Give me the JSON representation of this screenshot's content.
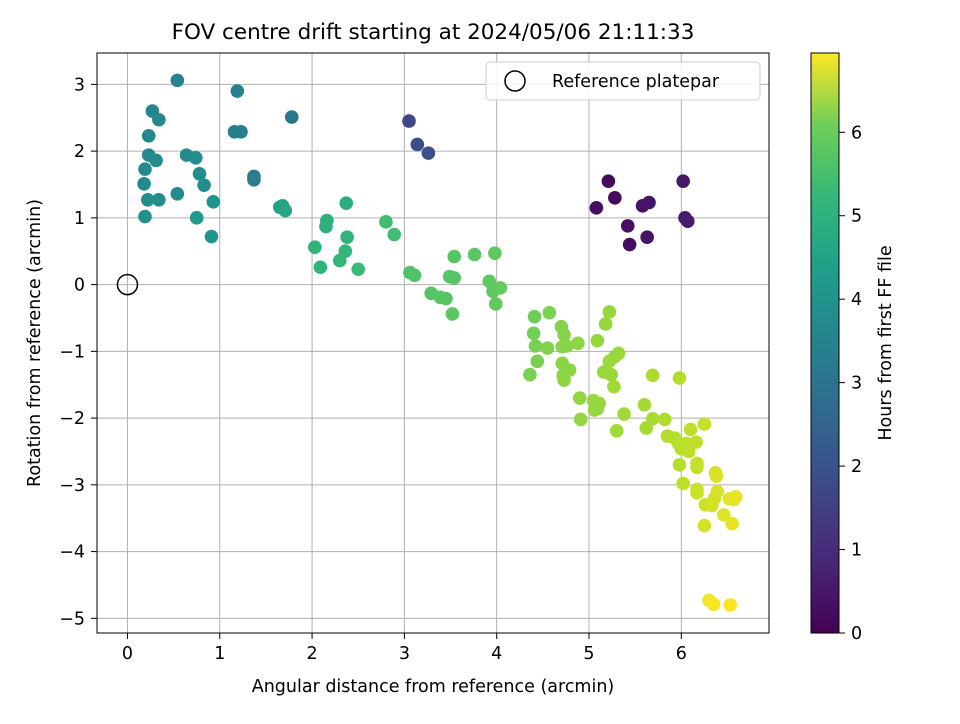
{
  "chart_data": {
    "type": "scatter",
    "title": "FOV centre drift starting at 2024/05/06 21:11:33",
    "xlabel": "Angular distance from reference (arcmin)",
    "ylabel": "Rotation from reference (arcmin)",
    "xlim": [
      -0.33,
      6.95
    ],
    "ylim": [
      -5.22,
      3.47
    ],
    "xticks": [
      0,
      1,
      2,
      3,
      4,
      5,
      6
    ],
    "xtick_labels": [
      "0",
      "1",
      "2",
      "3",
      "4",
      "5",
      "6"
    ],
    "yticks": [
      3,
      2,
      1,
      0,
      -1,
      -2,
      -3,
      -4,
      -5
    ],
    "ytick_labels": [
      "3",
      "2",
      "1",
      "0",
      "−1",
      "−2",
      "−3",
      "−4",
      "−5"
    ],
    "grid": true,
    "legend": {
      "location": "upper-right",
      "entries": [
        "Reference platepar"
      ]
    },
    "reference_point": {
      "x": 0,
      "y": 0,
      "label": "Reference platepar"
    },
    "colorbar": {
      "label": "Hours from first FF file",
      "range": [
        0,
        6.95
      ],
      "ticks": [
        0,
        1,
        2,
        3,
        4,
        5,
        6
      ],
      "tick_labels": [
        "0",
        "1",
        "2",
        "3",
        "4",
        "5",
        "6"
      ],
      "colormap": "viridis"
    },
    "points": [
      {
        "x": 5.21,
        "y": 1.55,
        "h": 0.15
      },
      {
        "x": 5.28,
        "y": 1.3,
        "h": 0.2
      },
      {
        "x": 5.08,
        "y": 1.15,
        "h": 0.25
      },
      {
        "x": 5.42,
        "y": 0.88,
        "h": 0.3
      },
      {
        "x": 5.44,
        "y": 0.6,
        "h": 0.3
      },
      {
        "x": 5.58,
        "y": 1.18,
        "h": 0.35
      },
      {
        "x": 5.65,
        "y": 1.23,
        "h": 0.4
      },
      {
        "x": 5.63,
        "y": 0.71,
        "h": 0.4
      },
      {
        "x": 6.02,
        "y": 1.55,
        "h": 0.45
      },
      {
        "x": 6.04,
        "y": 1.0,
        "h": 0.5
      },
      {
        "x": 6.07,
        "y": 0.95,
        "h": 0.55
      },
      {
        "x": 3.05,
        "y": 2.45,
        "h": 1.5
      },
      {
        "x": 3.14,
        "y": 2.1,
        "h": 1.6
      },
      {
        "x": 3.26,
        "y": 1.97,
        "h": 1.7
      },
      {
        "x": 1.78,
        "y": 2.51,
        "h": 2.8
      },
      {
        "x": 1.37,
        "y": 1.62,
        "h": 2.9
      },
      {
        "x": 1.37,
        "y": 1.57,
        "h": 2.95
      },
      {
        "x": 1.16,
        "y": 2.29,
        "h": 3.0
      },
      {
        "x": 1.23,
        "y": 2.29,
        "h": 3.0
      },
      {
        "x": 1.19,
        "y": 2.9,
        "h": 3.05
      },
      {
        "x": 0.54,
        "y": 3.06,
        "h": 3.1
      },
      {
        "x": 0.27,
        "y": 2.6,
        "h": 3.2
      },
      {
        "x": 0.34,
        "y": 2.47,
        "h": 3.2
      },
      {
        "x": 0.23,
        "y": 2.23,
        "h": 3.25
      },
      {
        "x": 0.23,
        "y": 1.94,
        "h": 3.3
      },
      {
        "x": 0.31,
        "y": 1.86,
        "h": 3.35
      },
      {
        "x": 0.19,
        "y": 1.73,
        "h": 3.3
      },
      {
        "x": 0.18,
        "y": 1.51,
        "h": 3.35
      },
      {
        "x": 0.22,
        "y": 1.27,
        "h": 3.4
      },
      {
        "x": 0.34,
        "y": 1.27,
        "h": 3.4
      },
      {
        "x": 0.19,
        "y": 1.02,
        "h": 3.5
      },
      {
        "x": 0.54,
        "y": 1.36,
        "h": 3.3
      },
      {
        "x": 0.64,
        "y": 1.94,
        "h": 3.35
      },
      {
        "x": 0.74,
        "y": 1.9,
        "h": 3.4
      },
      {
        "x": 0.78,
        "y": 1.66,
        "h": 3.4
      },
      {
        "x": 0.83,
        "y": 1.49,
        "h": 3.45
      },
      {
        "x": 0.93,
        "y": 1.24,
        "h": 3.6
      },
      {
        "x": 0.75,
        "y": 1.0,
        "h": 3.7
      },
      {
        "x": 0.91,
        "y": 0.72,
        "h": 3.6
      },
      {
        "x": 1.65,
        "y": 1.16,
        "h": 4.0
      },
      {
        "x": 1.68,
        "y": 1.18,
        "h": 4.0
      },
      {
        "x": 1.71,
        "y": 1.11,
        "h": 4.1
      },
      {
        "x": 2.37,
        "y": 1.22,
        "h": 4.3
      },
      {
        "x": 2.16,
        "y": 0.96,
        "h": 4.4
      },
      {
        "x": 2.15,
        "y": 0.87,
        "h": 4.4
      },
      {
        "x": 2.03,
        "y": 0.56,
        "h": 4.5
      },
      {
        "x": 2.09,
        "y": 0.26,
        "h": 4.5
      },
      {
        "x": 2.38,
        "y": 0.71,
        "h": 4.5
      },
      {
        "x": 2.36,
        "y": 0.5,
        "h": 4.55
      },
      {
        "x": 2.3,
        "y": 0.36,
        "h": 4.6
      },
      {
        "x": 2.5,
        "y": 0.23,
        "h": 4.7
      },
      {
        "x": 2.8,
        "y": 0.94,
        "h": 4.8
      },
      {
        "x": 2.89,
        "y": 0.75,
        "h": 4.8
      },
      {
        "x": 3.06,
        "y": 0.18,
        "h": 5.0
      },
      {
        "x": 3.11,
        "y": 0.14,
        "h": 5.0
      },
      {
        "x": 3.29,
        "y": -0.13,
        "h": 5.05
      },
      {
        "x": 3.39,
        "y": -0.19,
        "h": 5.1
      },
      {
        "x": 3.45,
        "y": -0.21,
        "h": 5.1
      },
      {
        "x": 3.49,
        "y": 0.12,
        "h": 5.1
      },
      {
        "x": 3.54,
        "y": 0.1,
        "h": 5.1
      },
      {
        "x": 3.54,
        "y": 0.42,
        "h": 5.1
      },
      {
        "x": 3.52,
        "y": -0.44,
        "h": 5.15
      },
      {
        "x": 3.76,
        "y": 0.45,
        "h": 5.15
      },
      {
        "x": 3.92,
        "y": 0.05,
        "h": 5.2
      },
      {
        "x": 3.96,
        "y": -0.1,
        "h": 5.2
      },
      {
        "x": 3.98,
        "y": 0.47,
        "h": 5.2
      },
      {
        "x": 3.99,
        "y": -0.29,
        "h": 5.25
      },
      {
        "x": 4.04,
        "y": -0.05,
        "h": 5.3
      },
      {
        "x": 4.41,
        "y": -0.48,
        "h": 5.4
      },
      {
        "x": 4.4,
        "y": -0.73,
        "h": 5.45
      },
      {
        "x": 4.42,
        "y": -0.92,
        "h": 5.5
      },
      {
        "x": 4.44,
        "y": -1.15,
        "h": 5.5
      },
      {
        "x": 4.36,
        "y": -1.35,
        "h": 5.55
      },
      {
        "x": 4.57,
        "y": -0.42,
        "h": 5.55
      },
      {
        "x": 4.55,
        "y": -0.95,
        "h": 5.6
      },
      {
        "x": 4.7,
        "y": -0.63,
        "h": 5.65
      },
      {
        "x": 4.73,
        "y": -0.75,
        "h": 5.65
      },
      {
        "x": 4.71,
        "y": -0.93,
        "h": 5.7
      },
      {
        "x": 4.76,
        "y": -0.92,
        "h": 5.7
      },
      {
        "x": 4.71,
        "y": -1.18,
        "h": 5.7
      },
      {
        "x": 4.72,
        "y": -1.36,
        "h": 5.75
      },
      {
        "x": 4.73,
        "y": -1.43,
        "h": 5.75
      },
      {
        "x": 4.79,
        "y": -1.28,
        "h": 5.75
      },
      {
        "x": 4.88,
        "y": -0.88,
        "h": 5.75
      },
      {
        "x": 4.9,
        "y": -1.7,
        "h": 5.8
      },
      {
        "x": 4.91,
        "y": -2.02,
        "h": 5.8
      },
      {
        "x": 5.05,
        "y": -1.74,
        "h": 5.85
      },
      {
        "x": 5.06,
        "y": -1.88,
        "h": 5.85
      },
      {
        "x": 5.09,
        "y": -1.86,
        "h": 5.85
      },
      {
        "x": 5.11,
        "y": -1.78,
        "h": 5.85
      },
      {
        "x": 5.09,
        "y": -0.84,
        "h": 5.85
      },
      {
        "x": 5.18,
        "y": -0.59,
        "h": 5.85
      },
      {
        "x": 5.22,
        "y": -0.41,
        "h": 5.85
      },
      {
        "x": 5.16,
        "y": -1.31,
        "h": 5.85
      },
      {
        "x": 5.22,
        "y": -1.15,
        "h": 5.9
      },
      {
        "x": 5.24,
        "y": -1.35,
        "h": 5.9
      },
      {
        "x": 5.28,
        "y": -1.08,
        "h": 5.9
      },
      {
        "x": 5.32,
        "y": -1.03,
        "h": 5.9
      },
      {
        "x": 5.27,
        "y": -1.53,
        "h": 5.95
      },
      {
        "x": 5.3,
        "y": -2.19,
        "h": 5.95
      },
      {
        "x": 5.38,
        "y": -1.94,
        "h": 5.95
      },
      {
        "x": 5.6,
        "y": -1.8,
        "h": 6.0
      },
      {
        "x": 5.62,
        "y": -2.15,
        "h": 6.0
      },
      {
        "x": 5.69,
        "y": -1.36,
        "h": 6.05
      },
      {
        "x": 5.69,
        "y": -2.01,
        "h": 6.05
      },
      {
        "x": 5.82,
        "y": -2.02,
        "h": 6.1
      },
      {
        "x": 5.85,
        "y": -2.27,
        "h": 6.15
      },
      {
        "x": 5.93,
        "y": -2.3,
        "h": 6.15
      },
      {
        "x": 5.97,
        "y": -2.38,
        "h": 6.2
      },
      {
        "x": 5.98,
        "y": -1.4,
        "h": 6.15
      },
      {
        "x": 5.98,
        "y": -2.7,
        "h": 6.2
      },
      {
        "x": 6.0,
        "y": -2.46,
        "h": 6.2
      },
      {
        "x": 6.02,
        "y": -2.98,
        "h": 6.25
      },
      {
        "x": 6.05,
        "y": -2.38,
        "h": 6.25
      },
      {
        "x": 6.08,
        "y": -2.5,
        "h": 6.3
      },
      {
        "x": 6.1,
        "y": -2.17,
        "h": 6.3
      },
      {
        "x": 6.16,
        "y": -2.36,
        "h": 6.3
      },
      {
        "x": 6.17,
        "y": -2.68,
        "h": 6.35
      },
      {
        "x": 6.17,
        "y": -2.74,
        "h": 6.35
      },
      {
        "x": 6.17,
        "y": -3.07,
        "h": 6.4
      },
      {
        "x": 6.17,
        "y": -3.12,
        "h": 6.4
      },
      {
        "x": 6.25,
        "y": -2.09,
        "h": 6.35
      },
      {
        "x": 6.26,
        "y": -3.3,
        "h": 6.45
      },
      {
        "x": 6.25,
        "y": -3.61,
        "h": 6.5
      },
      {
        "x": 6.33,
        "y": -3.31,
        "h": 6.5
      },
      {
        "x": 6.36,
        "y": -3.2,
        "h": 6.5
      },
      {
        "x": 6.37,
        "y": -2.82,
        "h": 6.5
      },
      {
        "x": 6.38,
        "y": -2.87,
        "h": 6.55
      },
      {
        "x": 6.39,
        "y": -3.1,
        "h": 6.55
      },
      {
        "x": 6.46,
        "y": -3.45,
        "h": 6.6
      },
      {
        "x": 6.52,
        "y": -3.21,
        "h": 6.65
      },
      {
        "x": 6.57,
        "y": -3.22,
        "h": 6.7
      },
      {
        "x": 6.59,
        "y": -3.18,
        "h": 6.7
      },
      {
        "x": 6.55,
        "y": -3.58,
        "h": 6.7
      },
      {
        "x": 6.3,
        "y": -4.73,
        "h": 6.85
      },
      {
        "x": 6.35,
        "y": -4.79,
        "h": 6.9
      },
      {
        "x": 6.53,
        "y": -4.8,
        "h": 6.9
      }
    ]
  }
}
